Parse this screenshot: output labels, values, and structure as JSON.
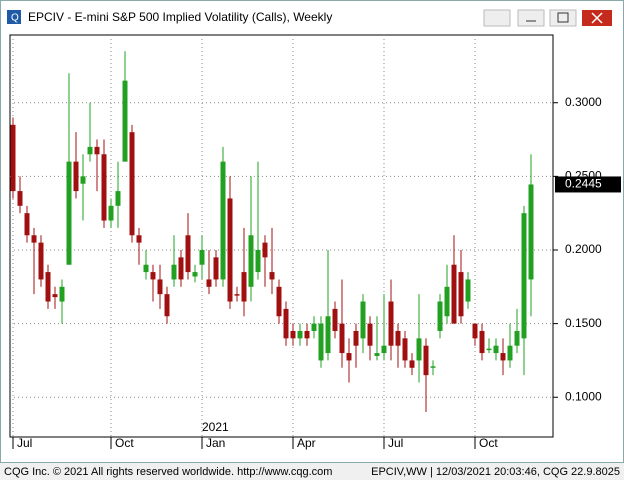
{
  "window_title": "EPCIV - E-mini S&P 500 Implied Volatility (Calls), Weekly",
  "footer": {
    "left": "CQG Inc. © 2021 All rights reserved worldwide. http://www.cqg.com",
    "right": "EPCIV,WW | 12/03/2021 20:03:46, CQG 22.9.8025"
  },
  "chart_data": {
    "type": "candlestick",
    "categories": [
      "Jul",
      null,
      null,
      null,
      null,
      null,
      null,
      null,
      null,
      null,
      null,
      null,
      null,
      null,
      "Oct",
      null,
      null,
      null,
      null,
      null,
      null,
      null,
      null,
      null,
      null,
      null,
      null,
      "Jan",
      null,
      null,
      null,
      null,
      null,
      null,
      null,
      null,
      null,
      null,
      null,
      null,
      "Apr",
      null,
      null,
      null,
      null,
      null,
      null,
      null,
      null,
      null,
      null,
      null,
      null,
      "Jul",
      null,
      null,
      null,
      null,
      null,
      null,
      null,
      null,
      null,
      null,
      null,
      null,
      "Oct",
      null,
      null,
      null,
      null,
      null,
      null,
      null,
      null
    ],
    "year_label": "2021",
    "open": [
      0.285,
      0.24,
      0.225,
      0.21,
      0.205,
      0.185,
      0.17,
      0.165,
      0.19,
      0.26,
      0.245,
      0.265,
      0.27,
      0.265,
      0.22,
      0.23,
      0.26,
      0.28,
      0.21,
      0.185,
      0.185,
      0.18,
      0.17,
      0.18,
      0.195,
      0.21,
      0.182,
      0.19,
      0.18,
      0.195,
      0.18,
      0.235,
      0.17,
      0.185,
      0.175,
      0.185,
      0.205,
      0.185,
      0.175,
      0.16,
      0.145,
      0.14,
      0.145,
      0.145,
      0.125,
      0.13,
      0.16,
      0.15,
      0.13,
      0.145,
      0.14,
      0.15,
      0.128,
      0.13,
      0.165,
      0.145,
      0.14,
      0.125,
      0.125,
      0.135,
      0.12,
      0.145,
      0.155,
      0.19,
      0.185,
      0.165,
      0.15,
      0.145,
      0.132,
      0.13,
      0.13,
      0.125,
      0.135,
      0.14,
      0.18
    ],
    "high": [
      0.29,
      0.25,
      0.23,
      0.215,
      0.21,
      0.19,
      0.175,
      0.18,
      0.32,
      0.28,
      0.265,
      0.3,
      0.275,
      0.275,
      0.235,
      0.26,
      0.335,
      0.285,
      0.215,
      0.2,
      0.19,
      0.19,
      0.175,
      0.21,
      0.2,
      0.225,
      0.19,
      0.21,
      0.2,
      0.2,
      0.27,
      0.25,
      0.175,
      0.215,
      0.25,
      0.26,
      0.21,
      0.215,
      0.18,
      0.165,
      0.15,
      0.15,
      0.15,
      0.155,
      0.155,
      0.2,
      0.165,
      0.18,
      0.14,
      0.15,
      0.17,
      0.155,
      0.155,
      0.17,
      0.18,
      0.15,
      0.145,
      0.13,
      0.17,
      0.14,
      0.125,
      0.17,
      0.19,
      0.21,
      0.2,
      0.185,
      0.15,
      0.15,
      0.14,
      0.14,
      0.14,
      0.15,
      0.16,
      0.23,
      0.265
    ],
    "low": [
      0.235,
      0.225,
      0.205,
      0.17,
      0.175,
      0.16,
      0.16,
      0.15,
      0.19,
      0.235,
      0.22,
      0.26,
      0.24,
      0.215,
      0.215,
      0.215,
      0.26,
      0.205,
      0.19,
      0.18,
      0.165,
      0.16,
      0.15,
      0.175,
      0.175,
      0.18,
      0.178,
      0.18,
      0.17,
      0.175,
      0.175,
      0.16,
      0.165,
      0.155,
      0.165,
      0.18,
      0.175,
      0.17,
      0.15,
      0.135,
      0.135,
      0.135,
      0.135,
      0.14,
      0.12,
      0.125,
      0.14,
      0.12,
      0.11,
      0.12,
      0.13,
      0.125,
      0.125,
      0.125,
      0.125,
      0.12,
      0.12,
      0.115,
      0.11,
      0.09,
      0.115,
      0.14,
      0.15,
      0.15,
      0.15,
      0.16,
      0.135,
      0.125,
      0.13,
      0.125,
      0.115,
      0.12,
      0.13,
      0.115,
      0.155
    ],
    "close": [
      0.24,
      0.23,
      0.21,
      0.205,
      0.18,
      0.165,
      0.168,
      0.175,
      0.26,
      0.24,
      0.25,
      0.27,
      0.265,
      0.22,
      0.23,
      0.24,
      0.315,
      0.21,
      0.205,
      0.19,
      0.18,
      0.17,
      0.155,
      0.19,
      0.18,
      0.185,
      0.185,
      0.2,
      0.175,
      0.18,
      0.26,
      0.165,
      0.169,
      0.165,
      0.21,
      0.2,
      0.195,
      0.18,
      0.155,
      0.14,
      0.14,
      0.145,
      0.14,
      0.15,
      0.15,
      0.155,
      0.145,
      0.13,
      0.125,
      0.135,
      0.165,
      0.135,
      0.13,
      0.135,
      0.135,
      0.135,
      0.125,
      0.12,
      0.14,
      0.115,
      0.121,
      0.165,
      0.175,
      0.15,
      0.155,
      0.18,
      0.14,
      0.13,
      0.133,
      0.135,
      0.125,
      0.135,
      0.145,
      0.225,
      0.2445
    ],
    "up_color": "#22a022",
    "down_color": "#a01010",
    "ylim": [
      0.073,
      0.346
    ],
    "yticks": [
      {
        "value": 0.1,
        "label": "0.1000"
      },
      {
        "value": 0.15,
        "label": "0.1500"
      },
      {
        "value": 0.2,
        "label": "0.2000"
      },
      {
        "value": 0.25,
        "label": "0.2500"
      },
      {
        "value": 0.3,
        "label": "0.3000"
      }
    ],
    "grid": true
  }
}
